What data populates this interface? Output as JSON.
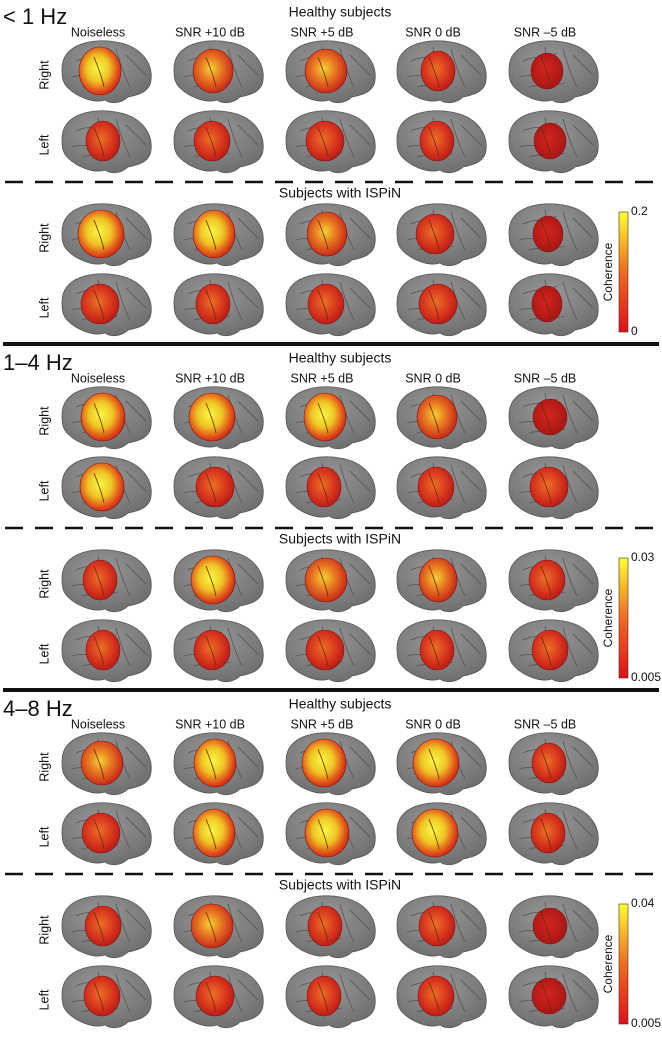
{
  "panels": [
    {
      "band": "< 1 Hz",
      "groups": [
        {
          "title": "Healthy subjects",
          "columns": [
            "Noiseless",
            "SNR +10 dB",
            "SNR +5 dB",
            "SNR 0 dB",
            "SNR –5 dB"
          ],
          "rows": [
            "Right",
            "Left"
          ]
        },
        {
          "title": "Subjects with ISPiN",
          "rows": [
            "Right",
            "Left"
          ]
        }
      ],
      "colorbar": {
        "label": "Coherence",
        "max": "0.2",
        "min": "0"
      }
    },
    {
      "band": "1–4 Hz",
      "groups": [
        {
          "title": "Healthy subjects",
          "columns": [
            "Noiseless",
            "SNR +10 dB",
            "SNR +5 dB",
            "SNR 0 dB",
            "SNR –5 dB"
          ],
          "rows": [
            "Right",
            "Left"
          ]
        },
        {
          "title": "Subjects with ISPiN",
          "rows": [
            "Right",
            "Left"
          ]
        }
      ],
      "colorbar": {
        "label": "Coherence",
        "max": "0.03",
        "min": "0.005"
      }
    },
    {
      "band": "4–8 Hz",
      "groups": [
        {
          "title": "Healthy subjects",
          "columns": [
            "Noiseless",
            "SNR +10 dB",
            "SNR +5 dB",
            "SNR 0 dB",
            "SNR –5 dB"
          ],
          "rows": [
            "Right",
            "Left"
          ]
        },
        {
          "title": "Subjects with ISPiN",
          "rows": [
            "Right",
            "Left"
          ]
        }
      ],
      "colorbar": {
        "label": "Coherence",
        "max": "0.04",
        "min": "0.005"
      }
    }
  ]
}
